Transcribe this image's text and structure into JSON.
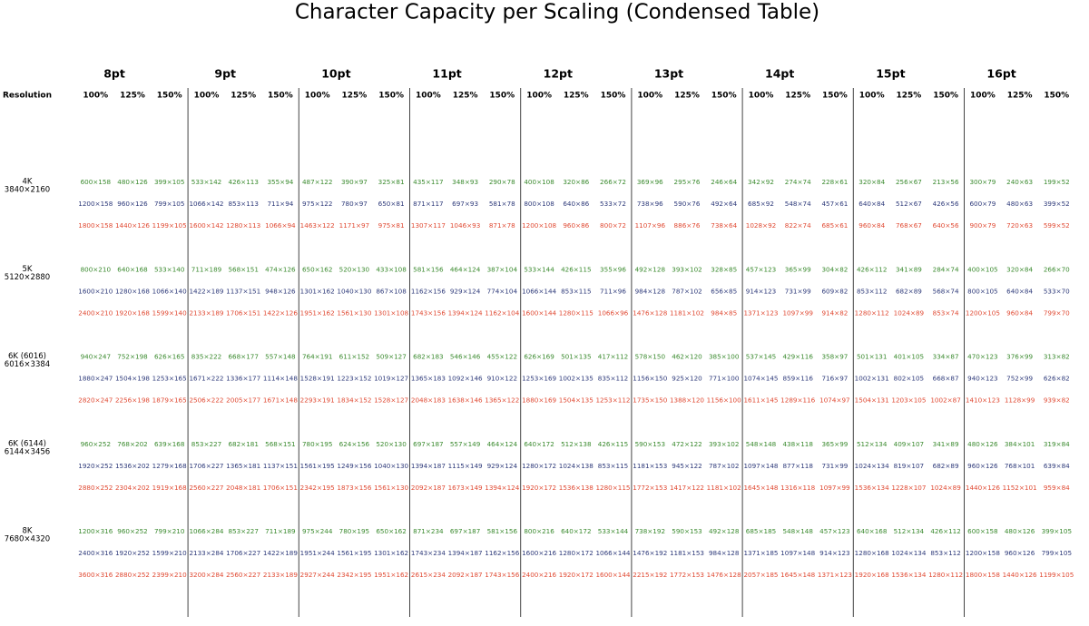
{
  "title": "Character Capacity per Scaling (Condensed Table)",
  "table": {
    "row_header": "Resolution",
    "groups": [
      "8pt",
      "9pt",
      "10pt",
      "11pt",
      "12pt",
      "13pt",
      "14pt",
      "15pt",
      "16pt"
    ],
    "subheaders": [
      "100%",
      "125%",
      "150%"
    ],
    "rows": [
      {
        "resolution": "4K",
        "dims": "3840×2160",
        "lines": [
          [
            "600×158",
            "480×126",
            "399×105",
            "533×142",
            "426×113",
            "355×94",
            "487×122",
            "390×97",
            "325×81",
            "435×117",
            "348×93",
            "290×78",
            "400×108",
            "320×86",
            "266×72",
            "369×96",
            "295×76",
            "246×64",
            "342×92",
            "274×74",
            "228×61",
            "320×84",
            "256×67",
            "213×56",
            "300×79",
            "240×63",
            "199×52"
          ],
          [
            "1200×158",
            "960×126",
            "799×105",
            "1066×142",
            "853×113",
            "711×94",
            "975×122",
            "780×97",
            "650×81",
            "871×117",
            "697×93",
            "581×78",
            "800×108",
            "640×86",
            "533×72",
            "738×96",
            "590×76",
            "492×64",
            "685×92",
            "548×74",
            "457×61",
            "640×84",
            "512×67",
            "426×56",
            "600×79",
            "480×63",
            "399×52"
          ],
          [
            "1800×158",
            "1440×126",
            "1199×105",
            "1600×142",
            "1280×113",
            "1066×94",
            "1463×122",
            "1171×97",
            "975×81",
            "1307×117",
            "1046×93",
            "871×78",
            "1200×108",
            "960×86",
            "800×72",
            "1107×96",
            "886×76",
            "738×64",
            "1028×92",
            "822×74",
            "685×61",
            "960×84",
            "768×67",
            "640×56",
            "900×79",
            "720×63",
            "599×52"
          ]
        ]
      },
      {
        "resolution": "5K",
        "dims": "5120×2880",
        "lines": [
          [
            "800×210",
            "640×168",
            "533×140",
            "711×189",
            "568×151",
            "474×126",
            "650×162",
            "520×130",
            "433×108",
            "581×156",
            "464×124",
            "387×104",
            "533×144",
            "426×115",
            "355×96",
            "492×128",
            "393×102",
            "328×85",
            "457×123",
            "365×99",
            "304×82",
            "426×112",
            "341×89",
            "284×74",
            "400×105",
            "320×84",
            "266×70"
          ],
          [
            "1600×210",
            "1280×168",
            "1066×140",
            "1422×189",
            "1137×151",
            "948×126",
            "1301×162",
            "1040×130",
            "867×108",
            "1162×156",
            "929×124",
            "774×104",
            "1066×144",
            "853×115",
            "711×96",
            "984×128",
            "787×102",
            "656×85",
            "914×123",
            "731×99",
            "609×82",
            "853×112",
            "682×89",
            "568×74",
            "800×105",
            "640×84",
            "533×70"
          ],
          [
            "2400×210",
            "1920×168",
            "1599×140",
            "2133×189",
            "1706×151",
            "1422×126",
            "1951×162",
            "1561×130",
            "1301×108",
            "1743×156",
            "1394×124",
            "1162×104",
            "1600×144",
            "1280×115",
            "1066×96",
            "1476×128",
            "1181×102",
            "984×85",
            "1371×123",
            "1097×99",
            "914×82",
            "1280×112",
            "1024×89",
            "853×74",
            "1200×105",
            "960×84",
            "799×70"
          ]
        ]
      },
      {
        "resolution": "6K (6016)",
        "dims": "6016×3384",
        "lines": [
          [
            "940×247",
            "752×198",
            "626×165",
            "835×222",
            "668×177",
            "557×148",
            "764×191",
            "611×152",
            "509×127",
            "682×183",
            "546×146",
            "455×122",
            "626×169",
            "501×135",
            "417×112",
            "578×150",
            "462×120",
            "385×100",
            "537×145",
            "429×116",
            "358×97",
            "501×131",
            "401×105",
            "334×87",
            "470×123",
            "376×99",
            "313×82"
          ],
          [
            "1880×247",
            "1504×198",
            "1253×165",
            "1671×222",
            "1336×177",
            "1114×148",
            "1528×191",
            "1223×152",
            "1019×127",
            "1365×183",
            "1092×146",
            "910×122",
            "1253×169",
            "1002×135",
            "835×112",
            "1156×150",
            "925×120",
            "771×100",
            "1074×145",
            "859×116",
            "716×97",
            "1002×131",
            "802×105",
            "668×87",
            "940×123",
            "752×99",
            "626×82"
          ],
          [
            "2820×247",
            "2256×198",
            "1879×165",
            "2506×222",
            "2005×177",
            "1671×148",
            "2293×191",
            "1834×152",
            "1528×127",
            "2048×183",
            "1638×146",
            "1365×122",
            "1880×169",
            "1504×135",
            "1253×112",
            "1735×150",
            "1388×120",
            "1156×100",
            "1611×145",
            "1289×116",
            "1074×97",
            "1504×131",
            "1203×105",
            "1002×87",
            "1410×123",
            "1128×99",
            "939×82"
          ]
        ]
      },
      {
        "resolution": "6K (6144)",
        "dims": "6144×3456",
        "lines": [
          [
            "960×252",
            "768×202",
            "639×168",
            "853×227",
            "682×181",
            "568×151",
            "780×195",
            "624×156",
            "520×130",
            "697×187",
            "557×149",
            "464×124",
            "640×172",
            "512×138",
            "426×115",
            "590×153",
            "472×122",
            "393×102",
            "548×148",
            "438×118",
            "365×99",
            "512×134",
            "409×107",
            "341×89",
            "480×126",
            "384×101",
            "319×84"
          ],
          [
            "1920×252",
            "1536×202",
            "1279×168",
            "1706×227",
            "1365×181",
            "1137×151",
            "1561×195",
            "1249×156",
            "1040×130",
            "1394×187",
            "1115×149",
            "929×124",
            "1280×172",
            "1024×138",
            "853×115",
            "1181×153",
            "945×122",
            "787×102",
            "1097×148",
            "877×118",
            "731×99",
            "1024×134",
            "819×107",
            "682×89",
            "960×126",
            "768×101",
            "639×84"
          ],
          [
            "2880×252",
            "2304×202",
            "1919×168",
            "2560×227",
            "2048×181",
            "1706×151",
            "2342×195",
            "1873×156",
            "1561×130",
            "2092×187",
            "1673×149",
            "1394×124",
            "1920×172",
            "1536×138",
            "1280×115",
            "1772×153",
            "1417×122",
            "1181×102",
            "1645×148",
            "1316×118",
            "1097×99",
            "1536×134",
            "1228×107",
            "1024×89",
            "1440×126",
            "1152×101",
            "959×84"
          ]
        ]
      },
      {
        "resolution": "8K",
        "dims": "7680×4320",
        "lines": [
          [
            "1200×316",
            "960×252",
            "799×210",
            "1066×284",
            "853×227",
            "711×189",
            "975×244",
            "780×195",
            "650×162",
            "871×234",
            "697×187",
            "581×156",
            "800×216",
            "640×172",
            "533×144",
            "738×192",
            "590×153",
            "492×128",
            "685×185",
            "548×148",
            "457×123",
            "640×168",
            "512×134",
            "426×112",
            "600×158",
            "480×126",
            "399×105"
          ],
          [
            "2400×316",
            "1920×252",
            "1599×210",
            "2133×284",
            "1706×227",
            "1422×189",
            "1951×244",
            "1561×195",
            "1301×162",
            "1743×234",
            "1394×187",
            "1162×156",
            "1600×216",
            "1280×172",
            "1066×144",
            "1476×192",
            "1181×153",
            "984×128",
            "1371×185",
            "1097×148",
            "914×123",
            "1280×168",
            "1024×134",
            "853×112",
            "1200×158",
            "960×126",
            "799×105"
          ],
          [
            "3600×316",
            "2880×252",
            "2399×210",
            "3200×284",
            "2560×227",
            "2133×189",
            "2927×244",
            "2342×195",
            "1951×162",
            "2615×234",
            "2092×187",
            "1743×156",
            "2400×216",
            "1920×172",
            "1600×144",
            "2215×192",
            "1772×153",
            "1476×128",
            "2057×185",
            "1645×148",
            "1371×123",
            "1920×168",
            "1536×134",
            "1280×112",
            "1800×158",
            "1440×126",
            "1199×105"
          ]
        ]
      }
    ]
  }
}
